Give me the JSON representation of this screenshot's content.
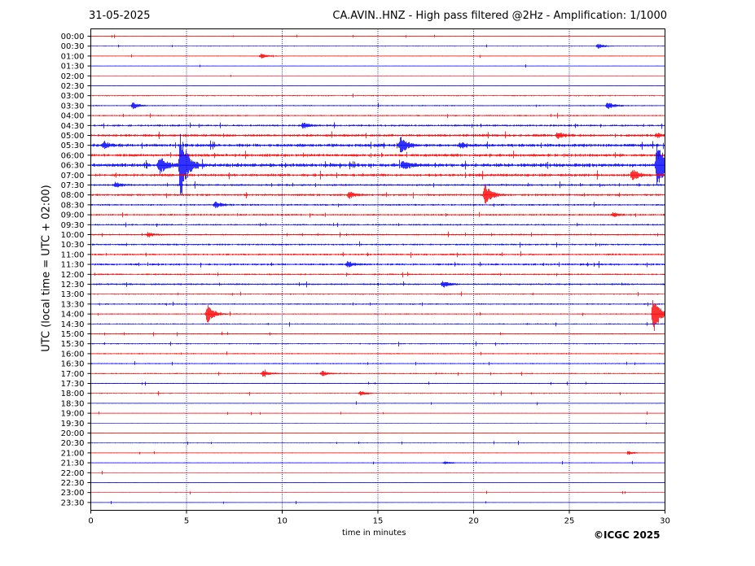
{
  "header": {
    "date": "31-05-2025",
    "title": "CA.AVIN..HNZ - High pass filtered @2Hz - Amplification: 1/1000"
  },
  "footer": {
    "xlabel": "time in minutes",
    "copyright": "©ICGC 2025"
  },
  "ylabel": "UTC (local time = UTC + 02:00)",
  "colors": {
    "even_rows": "#ff0000",
    "odd_rows": "#0000ff",
    "axes": "#000000",
    "grid": "#000080"
  },
  "chart_data": {
    "type": "line",
    "title": "CA.AVIN..HNZ - High pass filtered @2Hz - Amplification: 1/1000",
    "xlabel": "time in minutes",
    "ylabel": "UTC (local time = UTC + 02:00)",
    "xlim": [
      0,
      30
    ],
    "xticks": [
      0,
      5,
      10,
      15,
      20,
      25,
      30
    ],
    "grid_x": [
      5,
      10,
      15,
      20,
      25
    ],
    "rows": [
      "00:00",
      "00:30",
      "01:00",
      "01:30",
      "02:00",
      "02:30",
      "03:00",
      "03:30",
      "04:00",
      "04:30",
      "05:00",
      "05:30",
      "06:00",
      "06:30",
      "07:00",
      "07:30",
      "08:00",
      "08:30",
      "09:00",
      "09:30",
      "10:00",
      "10:30",
      "11:00",
      "11:30",
      "12:00",
      "12:30",
      "13:00",
      "13:30",
      "14:00",
      "14:30",
      "15:00",
      "15:30",
      "16:00",
      "16:30",
      "17:00",
      "17:30",
      "18:00",
      "18:30",
      "19:00",
      "19:30",
      "20:00",
      "20:30",
      "21:00",
      "21:30",
      "22:00",
      "22:30",
      "23:00",
      "23:30"
    ],
    "noise": [
      0.3,
      0.4,
      0.4,
      0.3,
      0.3,
      0.3,
      0.6,
      0.6,
      0.7,
      1.0,
      1.3,
      1.6,
      1.4,
      1.8,
      1.4,
      1.0,
      1.1,
      0.9,
      0.9,
      0.8,
      0.8,
      0.9,
      0.9,
      1.0,
      0.8,
      0.9,
      0.6,
      0.7,
      0.6,
      0.6,
      0.6,
      0.6,
      0.6,
      0.6,
      0.6,
      0.5,
      0.5,
      0.4,
      0.3,
      0.3,
      0.3,
      0.4,
      0.4,
      0.4,
      0.3,
      0.3,
      0.3,
      0.3
    ],
    "events": [
      {
        "row": "00:30",
        "minute": 26.5,
        "amp": 3
      },
      {
        "row": "01:00",
        "minute": 8.9,
        "amp": 3
      },
      {
        "row": "03:30",
        "minute": 2.2,
        "amp": 4
      },
      {
        "row": "03:30",
        "minute": 27.0,
        "amp": 5
      },
      {
        "row": "04:30",
        "minute": 11.1,
        "amp": 4
      },
      {
        "row": "05:00",
        "minute": 24.4,
        "amp": 4
      },
      {
        "row": "05:00",
        "minute": 29.6,
        "amp": 3
      },
      {
        "row": "05:30",
        "minute": 0.7,
        "amp": 4
      },
      {
        "row": "05:30",
        "minute": 16.2,
        "amp": 10
      },
      {
        "row": "05:30",
        "minute": 19.3,
        "amp": 3
      },
      {
        "row": "06:30",
        "minute": 3.6,
        "amp": 12
      },
      {
        "row": "06:30",
        "minute": 4.7,
        "amp": 44
      },
      {
        "row": "06:30",
        "minute": 16.3,
        "amp": 5
      },
      {
        "row": "06:30",
        "minute": 29.6,
        "amp": 34
      },
      {
        "row": "07:00",
        "minute": 28.3,
        "amp": 7
      },
      {
        "row": "07:30",
        "minute": 1.3,
        "amp": 4
      },
      {
        "row": "08:00",
        "minute": 13.5,
        "amp": 4
      },
      {
        "row": "08:00",
        "minute": 20.6,
        "amp": 13
      },
      {
        "row": "08:30",
        "minute": 6.5,
        "amp": 4
      },
      {
        "row": "09:00",
        "minute": 27.3,
        "amp": 3
      },
      {
        "row": "10:00",
        "minute": 3.0,
        "amp": 3
      },
      {
        "row": "11:30",
        "minute": 13.4,
        "amp": 4
      },
      {
        "row": "12:30",
        "minute": 18.4,
        "amp": 4
      },
      {
        "row": "14:00",
        "minute": 6.1,
        "amp": 12
      },
      {
        "row": "14:00",
        "minute": 29.4,
        "amp": 24
      },
      {
        "row": "17:00",
        "minute": 9.0,
        "amp": 4
      },
      {
        "row": "17:00",
        "minute": 12.1,
        "amp": 3
      },
      {
        "row": "18:00",
        "minute": 14.1,
        "amp": 3
      },
      {
        "row": "21:00",
        "minute": 28.1,
        "amp": 2
      },
      {
        "row": "21:30",
        "minute": 18.5,
        "amp": 2
      }
    ]
  }
}
